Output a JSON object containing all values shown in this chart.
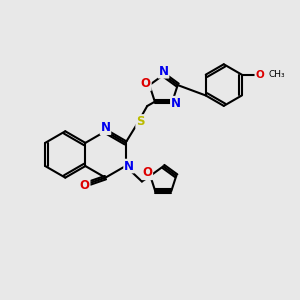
{
  "bg_color": "#e8e8e8",
  "bond_color": "#000000",
  "bond_lw": 1.5,
  "dbl_off": 0.06,
  "N_color": "#0000ee",
  "O_color": "#dd0000",
  "S_color": "#bbbb00",
  "fs": 8.5,
  "xlim": [
    0,
    10
  ],
  "ylim": [
    0,
    10
  ]
}
